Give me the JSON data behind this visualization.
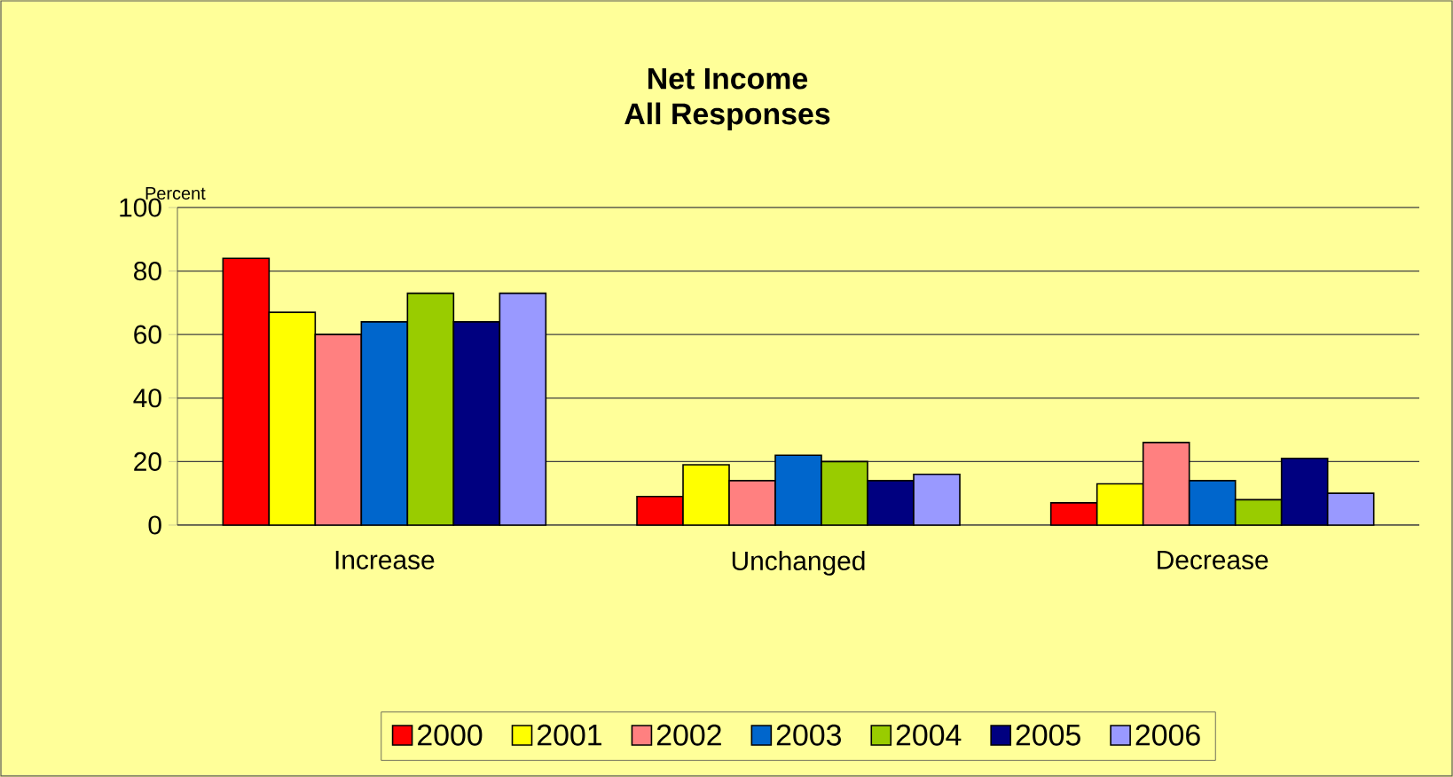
{
  "chart_data": {
    "type": "bar",
    "title": "Net Income",
    "subtitle": "All Responses",
    "ylabel": "Percent",
    "categories": [
      "Increase",
      "Unchanged",
      "Decrease"
    ],
    "series": [
      {
        "name": "2000",
        "color": "#ff0000",
        "values": [
          84,
          9,
          7
        ]
      },
      {
        "name": "2001",
        "color": "#ffff00",
        "values": [
          67,
          19,
          13
        ]
      },
      {
        "name": "2002",
        "color": "#ff8080",
        "values": [
          60,
          14,
          26
        ]
      },
      {
        "name": "2003",
        "color": "#0066cc",
        "values": [
          64,
          22,
          14
        ]
      },
      {
        "name": "2004",
        "color": "#99cc00",
        "values": [
          73,
          20,
          8
        ]
      },
      {
        "name": "2005",
        "color": "#000080",
        "values": [
          64,
          14,
          21
        ]
      },
      {
        "name": "2006",
        "color": "#9999ff",
        "values": [
          73,
          16,
          10
        ]
      }
    ],
    "ylim": [
      0,
      100
    ],
    "yticks": [
      0,
      20,
      40,
      60,
      80,
      100
    ],
    "grid": "y",
    "legend": "bottom"
  }
}
